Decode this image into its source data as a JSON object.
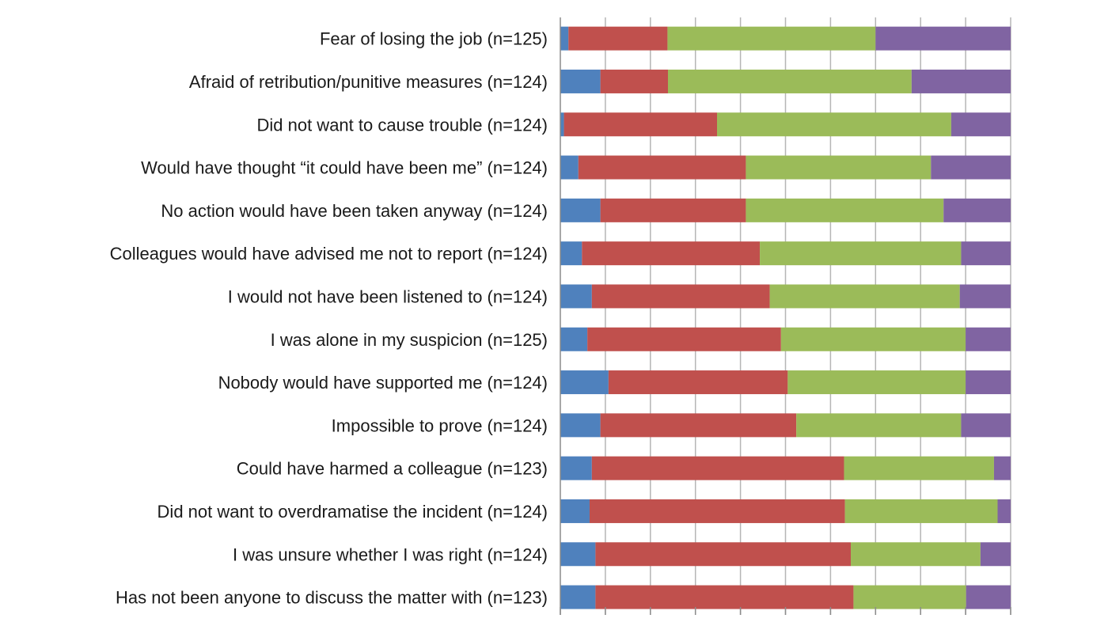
{
  "chart_data": {
    "type": "bar",
    "orientation": "horizontal",
    "stacked": true,
    "percent_stacked": true,
    "xlim": [
      0,
      100
    ],
    "grid": true,
    "categories": [
      "Fear of losing the job (n=125)",
      "Afraid of retribution/punitive measures (n=124)",
      "Did not want to cause trouble (n=124)",
      "Would have thought “it could have been me” (n=124)",
      "No action would have been taken anyway (n=124)",
      "Colleagues would have advised me not to report (n=124)",
      "I would not have been listened to (n=124)",
      "I was alone in my suspicion (n=125)",
      "Nobody would have supported me (n=124)",
      "Impossible to prove (n=124)",
      "Could have harmed a colleague (n=123)",
      "Did not want to overdramatise the incident (n=124)",
      "I was unsure whether I was right (n=124)",
      "Has not been anyone to discuss the matter with (n=123)"
    ],
    "series": [
      {
        "color": "#4f81bd",
        "values": [
          1.8,
          8.9,
          0.8,
          4.0,
          8.9,
          4.8,
          7.0,
          6.0,
          10.7,
          8.9,
          7.0,
          6.5,
          7.8,
          7.8
        ]
      },
      {
        "color": "#c0504d",
        "values": [
          22.0,
          15.0,
          34.0,
          37.2,
          32.3,
          39.5,
          39.5,
          43.0,
          39.8,
          43.5,
          56.0,
          56.7,
          56.7,
          57.3
        ]
      },
      {
        "color": "#9bbb59",
        "values": [
          46.2,
          54.1,
          52.0,
          41.1,
          43.9,
          44.7,
          42.2,
          41.0,
          39.5,
          36.6,
          33.3,
          33.9,
          28.8,
          25.0
        ]
      },
      {
        "color": "#8064a2",
        "values": [
          30.0,
          22.0,
          13.2,
          17.7,
          14.9,
          11.0,
          11.3,
          10.0,
          10.0,
          11.0,
          3.7,
          2.9,
          6.7,
          9.9
        ]
      }
    ]
  }
}
